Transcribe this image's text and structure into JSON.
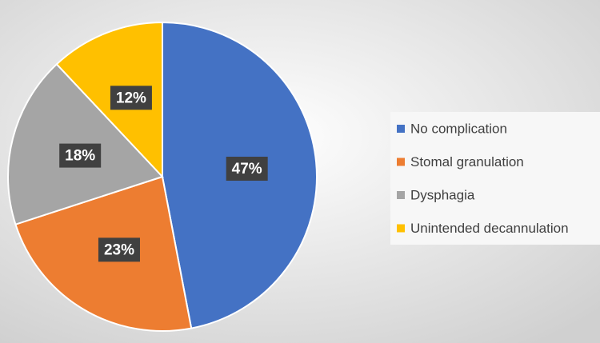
{
  "chart_data": {
    "type": "pie",
    "categories": [
      "No complication",
      "Stomal granulation",
      "Dysphagia",
      "Unintended decannulation"
    ],
    "values": [
      47,
      23,
      18,
      12
    ],
    "value_labels": [
      "47%",
      "23%",
      "18%",
      "12%"
    ],
    "colors": [
      "#4472c4",
      "#ed7d31",
      "#a5a5a5",
      "#ffc000"
    ],
    "legend": "right"
  }
}
